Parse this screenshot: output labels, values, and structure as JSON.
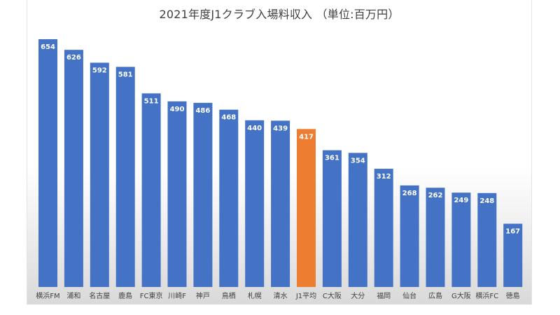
{
  "chart_data": {
    "type": "bar",
    "title": "2021年度J1クラブ入場料収入 （単位:百万円）",
    "xlabel": "",
    "ylabel": "",
    "ylim": [
      0,
      700
    ],
    "grid": false,
    "data_labels": true,
    "categories": [
      "横浜FM",
      "浦和",
      "名古屋",
      "鹿島",
      "FC東京",
      "川崎F",
      "神戸",
      "鳥栖",
      "札幌",
      "清水",
      "J1平均",
      "C大阪",
      "大分",
      "福岡",
      "仙台",
      "広島",
      "G大阪",
      "横浜FC",
      "徳島"
    ],
    "values": [
      654,
      626,
      592,
      581,
      511,
      490,
      486,
      468,
      440,
      439,
      417,
      361,
      354,
      312,
      268,
      262,
      249,
      248,
      167
    ],
    "colors": {
      "bar": "#4472c4",
      "highlight": "#ed7d31",
      "highlight_category": "J1平均",
      "label_text": "#ffffff",
      "tick_text": "#404040"
    }
  }
}
